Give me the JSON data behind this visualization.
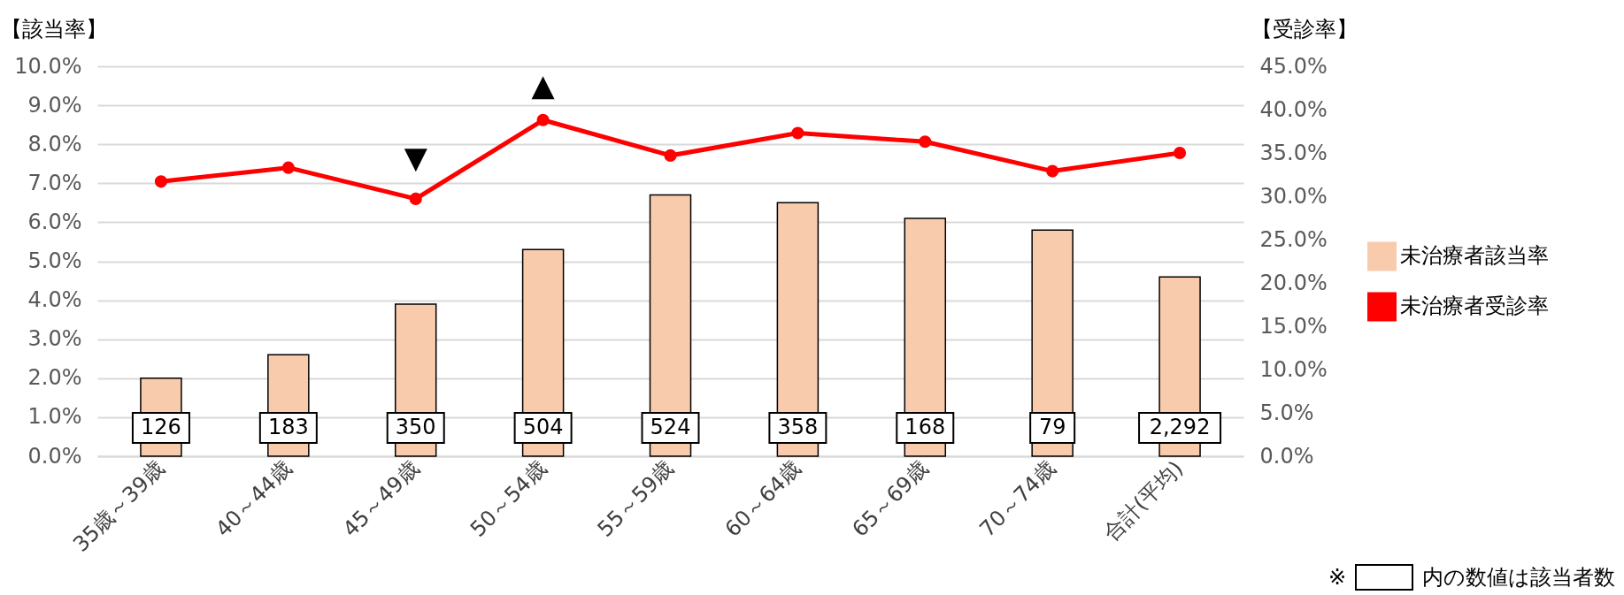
{
  "chart_data": {
    "type": "bar",
    "ylabel": "【該当率】",
    "y2label": "【受診率】",
    "categories": [
      "35歳～39歳",
      "40～44歳",
      "45～49歳",
      "50～54歳",
      "55～59歳",
      "60～64歳",
      "65～69歳",
      "70～74歳",
      "合計(平均)"
    ],
    "series": [
      {
        "name": "未治療者該当率",
        "color": "#f8cbad",
        "values": [
          2.0,
          2.6,
          3.9,
          5.3,
          6.7,
          6.5,
          6.1,
          5.8,
          4.6
        ]
      },
      {
        "name": "未治療者受診率",
        "type": "line",
        "axis": "y2",
        "color": "#ff0000",
        "values": [
          31.7,
          33.3,
          29.7,
          38.8,
          34.7,
          37.3,
          36.3,
          32.9,
          35.0
        ]
      }
    ],
    "ylim": [
      0,
      10
    ],
    "yticks": [
      {
        "value": 0,
        "label": "0.0%"
      },
      {
        "value": 1,
        "label": "1.0%"
      },
      {
        "value": 2,
        "label": "2.0%"
      },
      {
        "value": 3,
        "label": "3.0%"
      },
      {
        "value": 4,
        "label": "4.0%"
      },
      {
        "value": 5,
        "label": "5.0%"
      },
      {
        "value": 6,
        "label": "6.0%"
      },
      {
        "value": 7,
        "label": "7.0%"
      },
      {
        "value": 8,
        "label": "8.0%"
      },
      {
        "value": 9,
        "label": "9.0%"
      },
      {
        "value": 10,
        "label": "10.0%"
      }
    ],
    "y2lim": [
      0,
      45
    ],
    "y2ticks": [
      {
        "value": 0,
        "label": "0.0%"
      },
      {
        "value": 5,
        "label": "5.0%"
      },
      {
        "value": 10,
        "label": "10.0%"
      },
      {
        "value": 15,
        "label": "15.0%"
      },
      {
        "value": 20,
        "label": "20.0%"
      },
      {
        "value": 25,
        "label": "25.0%"
      },
      {
        "value": 30,
        "label": "30.0%"
      },
      {
        "value": 35,
        "label": "35.0%"
      },
      {
        "value": 40,
        "label": "40.0%"
      },
      {
        "value": 45,
        "label": "45.0%"
      }
    ],
    "grid": "y",
    "legend": "right",
    "marker": "circle",
    "line_style": "solid",
    "annotations": [
      "126",
      "183",
      "350",
      "504",
      "524",
      "358",
      "168",
      "79",
      "2,292",
      "▼",
      "▲",
      "※",
      "内の数値は該当者数"
    ]
  }
}
